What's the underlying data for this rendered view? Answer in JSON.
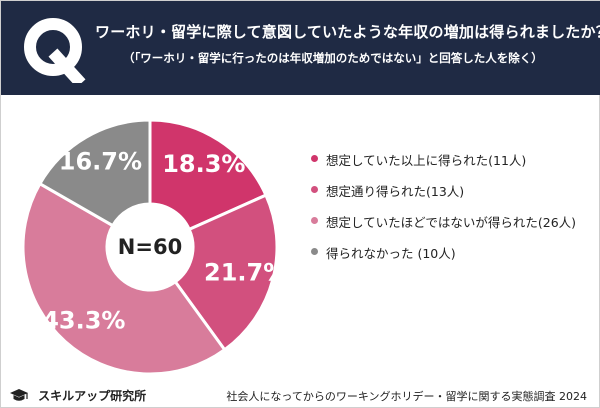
{
  "header": {
    "mark": "Q",
    "question": "ワーホリ・留学に際して意図していたような年収の増加は得られましたか？",
    "note": "（「ワーホリ・留学に行ったのは年収増加のためではない」と回答した人を除く）"
  },
  "chart_data": {
    "type": "pie",
    "donut": true,
    "center_label": "N=60",
    "slices": [
      {
        "label": "想定していた以上に得られた(11人)",
        "value": 18.3,
        "value_label": "18.3%",
        "color": "#d0356b"
      },
      {
        "label": "想定通り得られた(13人)",
        "value": 21.7,
        "value_label": "21.7%",
        "color": "#d2507e"
      },
      {
        "label": "想定していたほどではないが得られた(26人)",
        "value": 43.3,
        "value_label": "43.3%",
        "color": "#d87c9b"
      },
      {
        "label": "得られなかった (10人)",
        "value": 16.7,
        "value_label": "16.7%",
        "color": "#8a8a8a"
      }
    ],
    "legend_position": "right"
  },
  "footer": {
    "brand": "スキルアップ研究所",
    "survey": "社会人になってからのワーキングホリデー・留学に関する実態調査 2024"
  }
}
